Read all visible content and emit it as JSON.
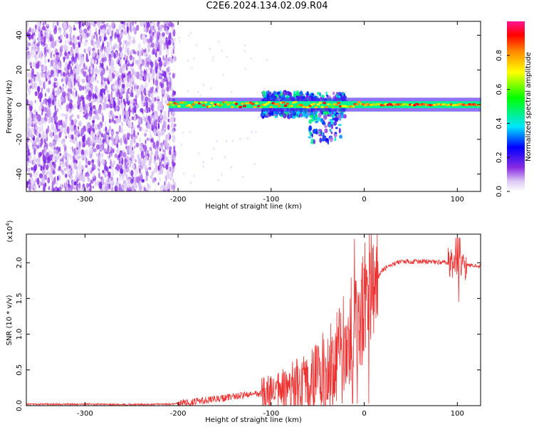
{
  "title": "C2E6.2024.134.02.09.R04",
  "chart_data": [
    {
      "type": "heatmap",
      "xlabel": "Height of straight line (km)",
      "ylabel": "Frequency (Hz)",
      "xlim": [
        -363,
        125
      ],
      "ylim": [
        -50,
        48
      ],
      "xticks": [
        -300,
        -200,
        -100,
        0,
        100
      ],
      "yticks": [
        -40,
        -20,
        0,
        20,
        40
      ],
      "xtick_labels": [
        "-300",
        "-200",
        "-100",
        "0",
        "100"
      ],
      "ytick_labels": [
        "-40",
        "-20",
        "0",
        "20",
        "40"
      ],
      "colorbar": {
        "label": "Normalized spectral amplitude",
        "range": [
          0,
          1
        ],
        "ticks": [
          0,
          0.2,
          0.4,
          0.6,
          0.8
        ],
        "tick_labels": [
          "0.0",
          "0.2",
          "0.4",
          "0.6",
          "0.8"
        ],
        "colors": [
          "#ffffff",
          "#dcc8f5",
          "#8a2be2",
          "#0000ff",
          "#00e5ff",
          "#00ff00",
          "#ffff00",
          "#ff8c00",
          "#ff0000",
          "#ff1493"
        ]
      },
      "regions": [
        {
          "description": "broadband noise",
          "x": [
            -363,
            -203
          ],
          "freq_range": [
            -50,
            48
          ],
          "amplitude": [
            0.0,
            0.1
          ]
        },
        {
          "description": "carrier line",
          "x": [
            -210,
            125
          ],
          "center_freq": 0,
          "amplitude": [
            0.6,
            0.95
          ]
        },
        {
          "description": "scintillation spread",
          "x": [
            -110,
            -20
          ],
          "freq_range": [
            -25,
            12
          ],
          "amplitude": [
            0.1,
            0.5
          ]
        }
      ],
      "grid": false
    },
    {
      "type": "line",
      "xlabel": "Height of straight line (km)",
      "ylabel": "SNR (10 * v/v)",
      "y_multiplier_label": "(x10",
      "y_multiplier_exp": "4",
      "y_multiplier_close": ")",
      "xlim": [
        -363,
        125
      ],
      "ylim": [
        0,
        24000
      ],
      "xticks": [
        -300,
        -200,
        -100,
        0,
        100
      ],
      "yticks": [
        0,
        5000,
        10000,
        15000,
        20000
      ],
      "xtick_labels": [
        "-300",
        "-200",
        "-100",
        "0",
        "100"
      ],
      "ytick_labels": [
        "0.0",
        "0.5",
        "1.0",
        "1.5",
        "2.0"
      ],
      "series": [
        {
          "color": "#ee3333",
          "x": [
            -363,
            -300,
            -250,
            -210,
            -200,
            -180,
            -160,
            -140,
            -120,
            -100,
            -80,
            -60,
            -50,
            -40,
            -30,
            -20,
            -15,
            -10,
            -5,
            0,
            5,
            10,
            15,
            20,
            30,
            40,
            60,
            80,
            95,
            100,
            105,
            125
          ],
          "y": [
            200,
            200,
            150,
            200,
            300,
            600,
            900,
            1300,
            1600,
            1800,
            2200,
            2800,
            4000,
            5500,
            7000,
            9000,
            10500,
            11000,
            12000,
            14000,
            15500,
            17000,
            18000,
            19000,
            19800,
            20200,
            20200,
            20100,
            19900,
            19800,
            19700,
            19500
          ]
        }
      ],
      "grid": false
    }
  ]
}
